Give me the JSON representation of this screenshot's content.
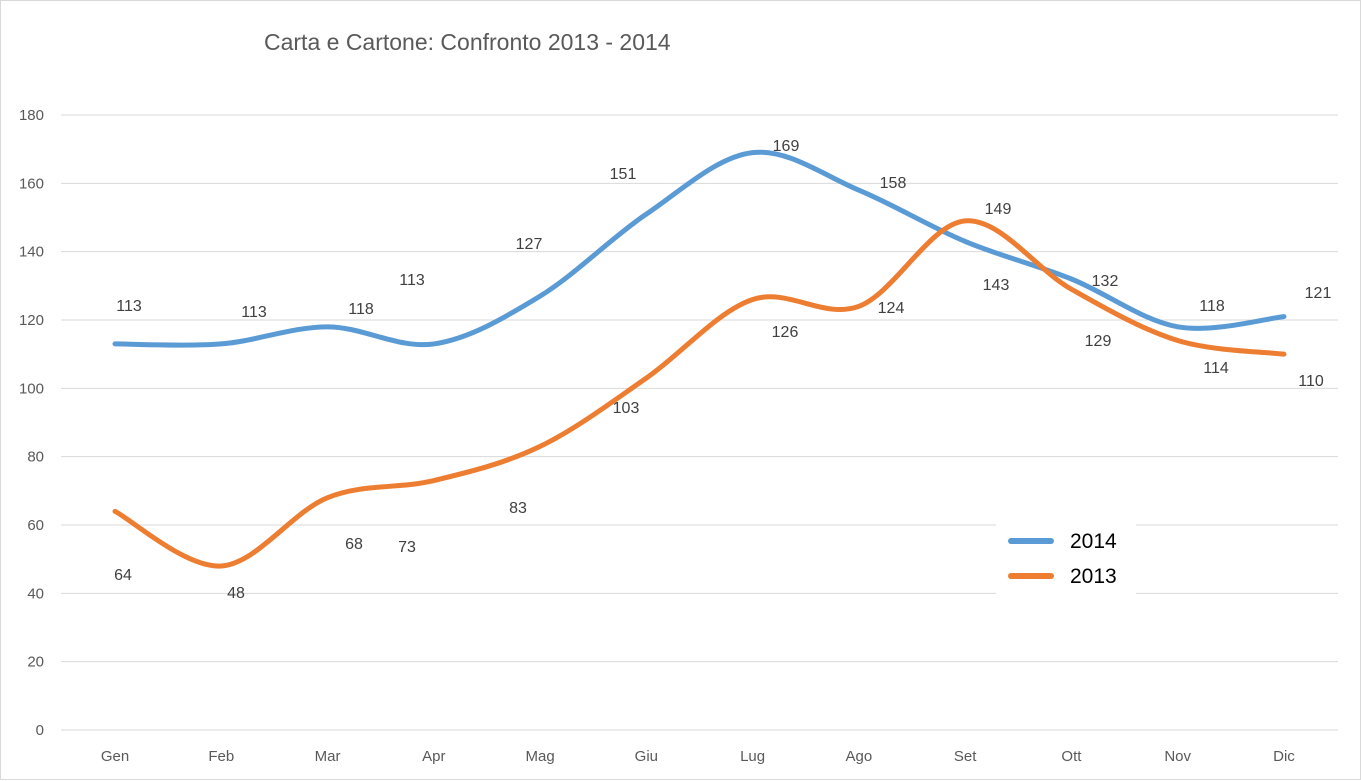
{
  "chart_data": {
    "type": "line",
    "title": "Carta e Cartone: Confronto 2013 - 2014",
    "categories": [
      "Gen",
      "Feb",
      "Mar",
      "Apr",
      "Mag",
      "Giu",
      "Lug",
      "Ago",
      "Set",
      "Ott",
      "Nov",
      "Dic"
    ],
    "series": [
      {
        "name": "2014",
        "color": "#5B9BD5",
        "values": [
          113,
          113,
          118,
          113,
          127,
          151,
          169,
          158,
          143,
          132,
          118,
          121
        ]
      },
      {
        "name": "2013",
        "color": "#ED7D31",
        "values": [
          64,
          48,
          68,
          73,
          83,
          103,
          126,
          124,
          149,
          129,
          114,
          110
        ]
      }
    ],
    "ylim": [
      0,
      180
    ],
    "yticks": [
      0,
      20,
      40,
      60,
      80,
      100,
      120,
      140,
      160,
      180
    ],
    "grid": true,
    "smooth": true,
    "data_labels": true,
    "legend": "bottom-right inside"
  }
}
